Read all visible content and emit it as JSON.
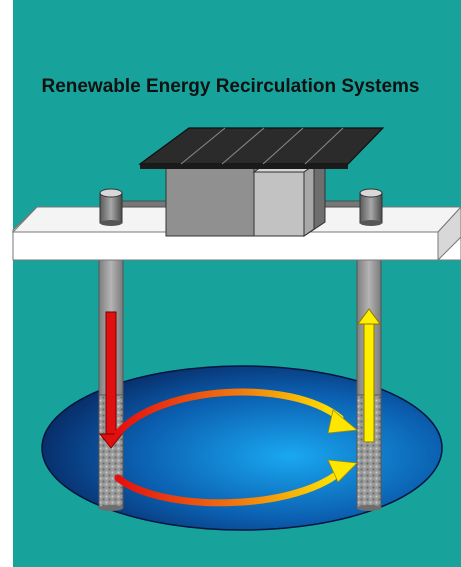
{
  "title": "Renewable Energy Recirculation Systems",
  "colors": {
    "background": "#17a39c",
    "hot_flow": "#e01010",
    "warm_flow": "#ffe600",
    "reservoir": "#0a2a66",
    "solar_panel": "#2a2a2a",
    "platform": "#ffffff",
    "housing": "#8c8c8c"
  },
  "icons": {
    "panel": "solar-panel-icon",
    "heat_pump": "heat-pump-unit-icon",
    "injection_well": "injection-well-icon",
    "production_well": "production-well-icon",
    "reservoir": "aquifer-reservoir-icon"
  }
}
